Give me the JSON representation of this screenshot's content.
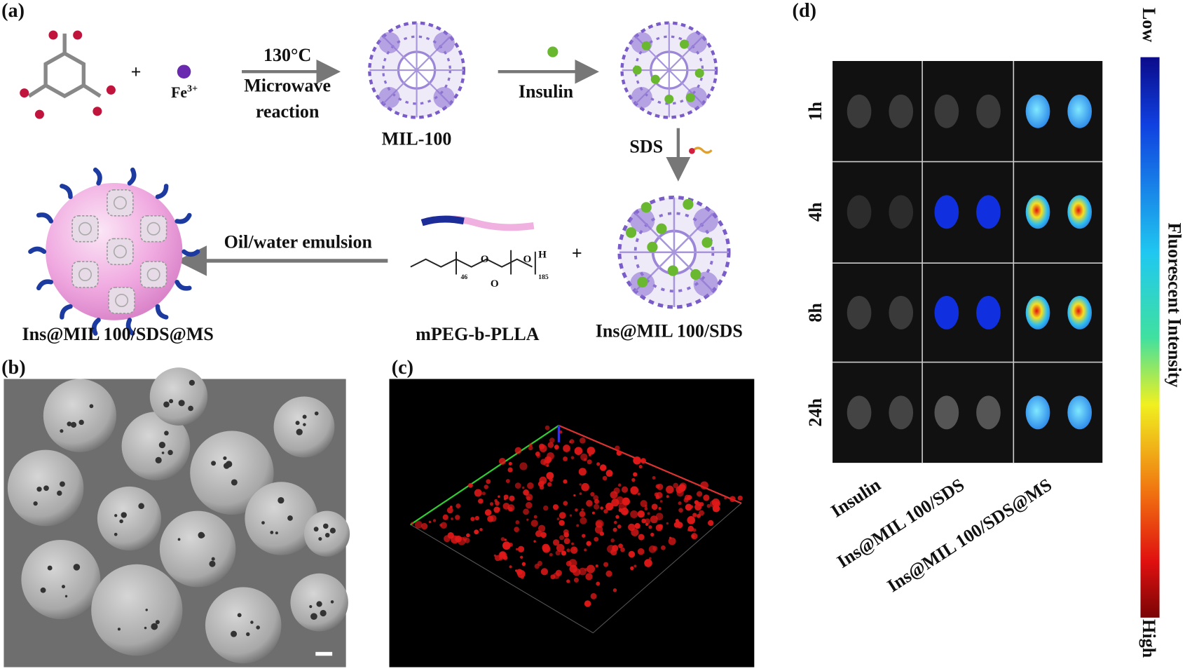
{
  "panel_a": {
    "label": "(a)",
    "plus": "+",
    "fe": "Fe",
    "fe_charge": "3+",
    "temperature": "130°C",
    "method_line1": "Microwave",
    "method_line2": "reaction",
    "mof": "MIL-100",
    "insulin": "Insulin",
    "sds": "SDS",
    "loaded": "Ins@MIL 100/SDS",
    "polymer": "mPEG-b-PLLA",
    "polymer_atom_o": "O",
    "polymer_atom_h": "H",
    "polymer_n1": "46",
    "polymer_n2": "185",
    "emulsion": "Oil/water emulsion",
    "product": "Ins@MIL 100/SDS@MS"
  },
  "panel_b": {
    "label": "(b)"
  },
  "panel_c": {
    "label": "(c)"
  },
  "panel_d": {
    "label": "(d)",
    "rows": [
      "1h",
      "4h",
      "8h",
      "24h"
    ],
    "columns": [
      "Insulin",
      "Ins@MIL 100/SDS",
      "Ins@MIL 100/SDS@MS"
    ],
    "colorbar_low": "Low",
    "colorbar_high": "High",
    "colorbar_title": "Fluorescent Intensity"
  }
}
